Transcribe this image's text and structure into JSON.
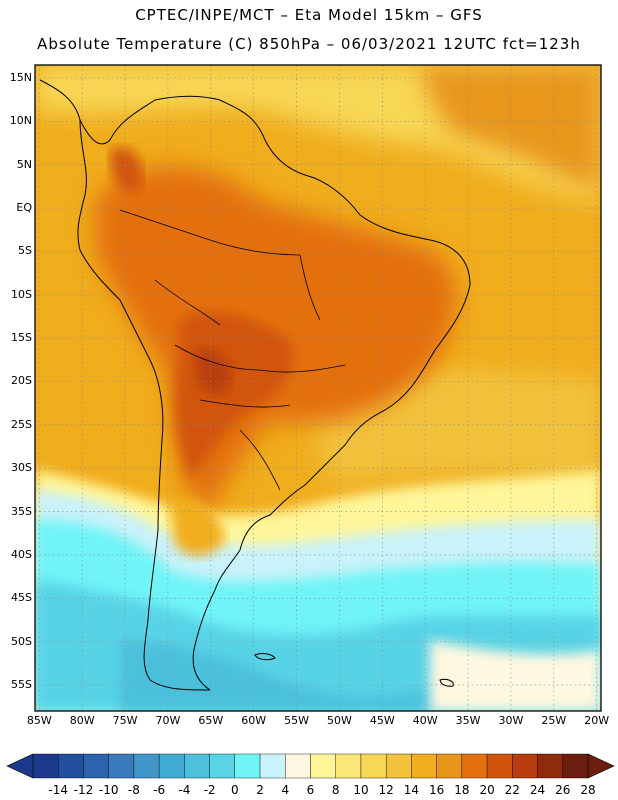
{
  "title_line1": "CPTEC/INPE/MCT –  Eta Model 15km – GFS",
  "title_line2": "Absolute Temperature (C) 850hPa – 06/03/2021 12UTC fct=123h",
  "lat_labels": [
    "15N",
    "10N",
    "5N",
    "EQ",
    "5S",
    "10S",
    "15S",
    "20S",
    "25S",
    "30S",
    "35S",
    "40S",
    "45S",
    "50S",
    "55S"
  ],
  "lon_labels": [
    "85W",
    "80W",
    "75W",
    "70W",
    "65W",
    "60W",
    "55W",
    "50W",
    "45W",
    "40W",
    "35W",
    "30W",
    "25W",
    "20W"
  ],
  "colorbar": {
    "ticks": [
      "-14",
      "-12",
      "-10",
      "-8",
      "-6",
      "-4",
      "-2",
      "0",
      "2",
      "4",
      "6",
      "8",
      "10",
      "12",
      "14",
      "16",
      "18",
      "20",
      "22",
      "24",
      "26",
      "28"
    ],
    "colors": [
      "#1c3a8c",
      "#23509e",
      "#2c63ac",
      "#3b7bbd",
      "#3f96c7",
      "#42abd2",
      "#4cc0dc",
      "#59d3e6",
      "#6ff4f7",
      "#c9f2fa",
      "#fff8e0",
      "#fff69a",
      "#fbe777",
      "#f8d757",
      "#f2c23d",
      "#f0ad1d",
      "#e8961b",
      "#e46f0f",
      "#d1540e",
      "#b83d0e",
      "#8f2a0c",
      "#6b1e0e"
    ],
    "under_color": "#1c3a8c",
    "over_color": "#6b1e0e"
  }
}
